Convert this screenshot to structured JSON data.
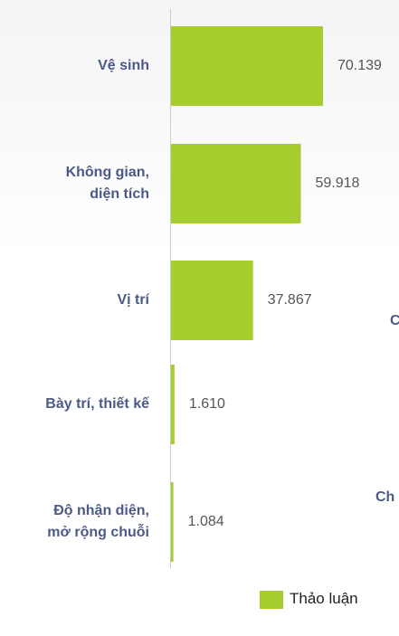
{
  "chart_data": {
    "type": "hbar",
    "categories": [
      "Vệ sinh",
      "Không gian,\ndiện tích",
      "Vị trí",
      "Bày trí, thiết kế",
      "Độ nhận diện,\nmở rộng chuỗi"
    ],
    "series": [
      {
        "name": "Thảo luận",
        "color": "#a5cd2d",
        "values": [
          70139,
          59918,
          37867,
          1610,
          1084
        ],
        "value_labels": [
          "70.139",
          "59.918",
          "37.867",
          "1.610",
          "1.084"
        ]
      }
    ],
    "annotations": [
      "C",
      "Ch"
    ]
  }
}
